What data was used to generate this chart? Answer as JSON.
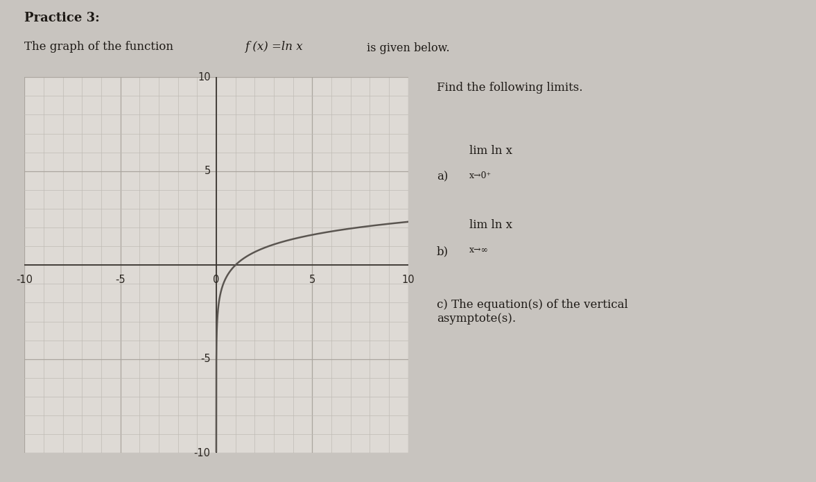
{
  "background_color": "#dedad5",
  "page_bg": "#c8c4bf",
  "title": "Practice 3:",
  "subtitle_plain": "The graph of the function ",
  "subtitle_formula": "f (x) =ln x",
  "subtitle_end": " is given below.",
  "find_text": "Find the following limits.",
  "part_a_label": "a)",
  "part_a_lim_top": "lim ln x",
  "part_a_lim_bot": "x→0⁺",
  "part_b_label": "b)",
  "part_b_lim_top": "lim ln x",
  "part_b_lim_bot": "x→∞",
  "part_c": "c) The equation(s) of the vertical\nasymptote(s).",
  "xlim": [
    -10,
    10
  ],
  "ylim": [
    -10,
    10
  ],
  "xticks": [
    -10,
    -5,
    0,
    5,
    10
  ],
  "yticks": [
    -10,
    -5,
    0,
    5,
    10
  ],
  "curve_color": "#5a5550",
  "grid_major_color": "#aaa59e",
  "grid_minor_color": "#bfbbb5",
  "axis_color": "#3a3530",
  "tick_label_color": "#2a2520",
  "text_color": "#1e1a16"
}
